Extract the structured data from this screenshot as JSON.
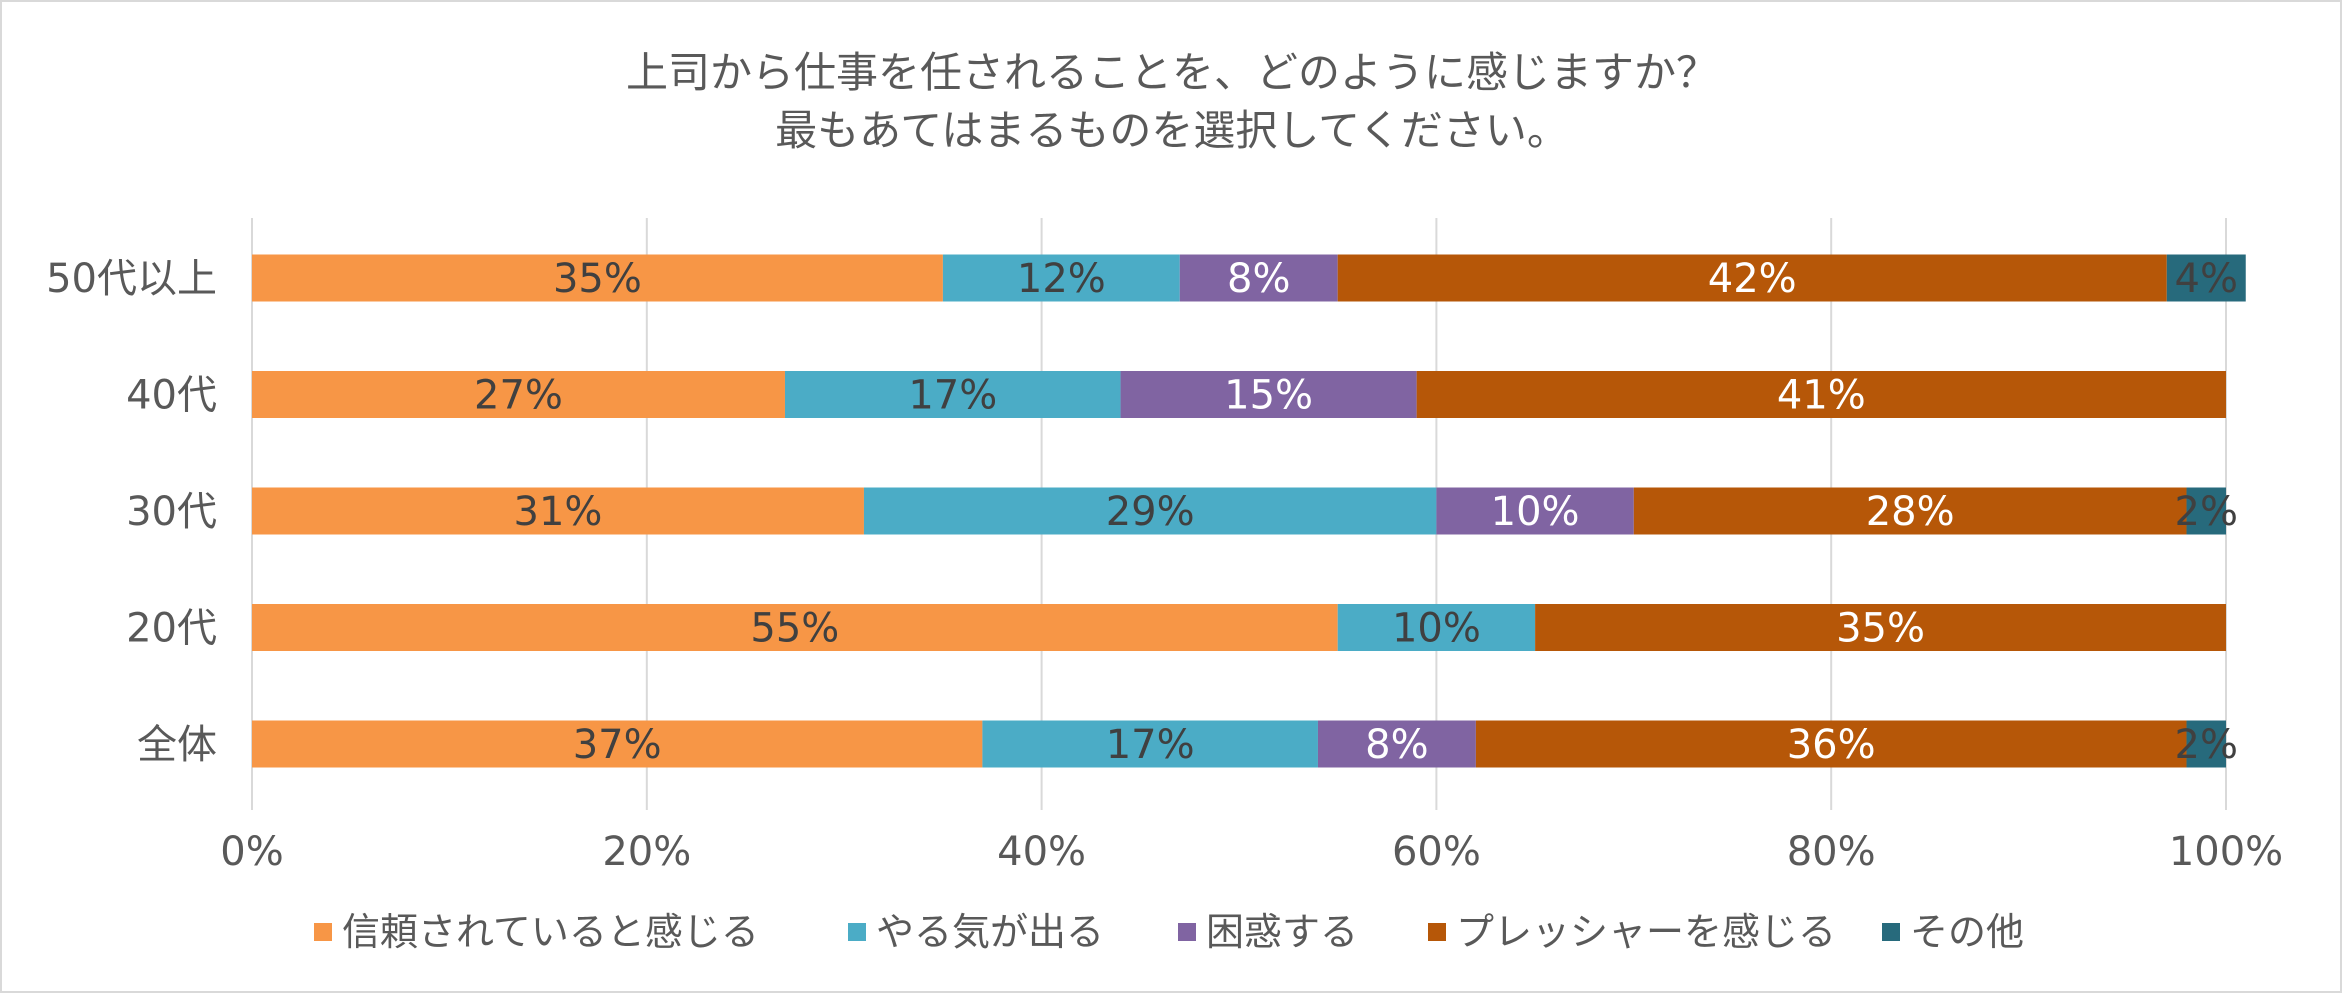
{
  "chart_data": {
    "type": "bar",
    "orientation": "horizontal",
    "stacked": true,
    "percent": true,
    "title_lines": [
      "上司から仕事を任されることを、どのように感じますか？",
      "最もあてはまるものを選択してください。"
    ],
    "categories": [
      "50代以上",
      "40代",
      "30代",
      "20代",
      "全体"
    ],
    "series": [
      {
        "name": "信頼されていると感じる",
        "color": "#f79646",
        "values": [
          35,
          27,
          31,
          55,
          37
        ],
        "labels": [
          "35%",
          "27%",
          "31%",
          "55%",
          "37%"
        ]
      },
      {
        "name": "やる気が出る",
        "color": "#4bacc6",
        "values": [
          12,
          17,
          29,
          10,
          17
        ],
        "labels": [
          "12%",
          "17%",
          "29%",
          "10%",
          "17%"
        ]
      },
      {
        "name": "困惑する",
        "color": "#8064a2",
        "values": [
          8,
          15,
          10,
          0,
          8
        ],
        "labels": [
          "8%",
          "15%",
          "10%",
          "",
          "8%"
        ]
      },
      {
        "name": "プレッシャーを感じる",
        "color": "#b65708",
        "values": [
          42,
          41,
          28,
          35,
          36
        ],
        "labels": [
          "42%",
          "41%",
          "28%",
          "35%",
          "36%"
        ]
      },
      {
        "name": "その他",
        "color": "#276a7c",
        "values": [
          4,
          0,
          2,
          0,
          2
        ],
        "labels": [
          "4%",
          "",
          "2%",
          "",
          "2%"
        ]
      }
    ],
    "xlim": [
      0,
      100
    ],
    "x_ticks": [
      "0%",
      "20%",
      "40%",
      "60%",
      "80%",
      "100%"
    ],
    "grid": true,
    "legend_position": "bottom"
  }
}
